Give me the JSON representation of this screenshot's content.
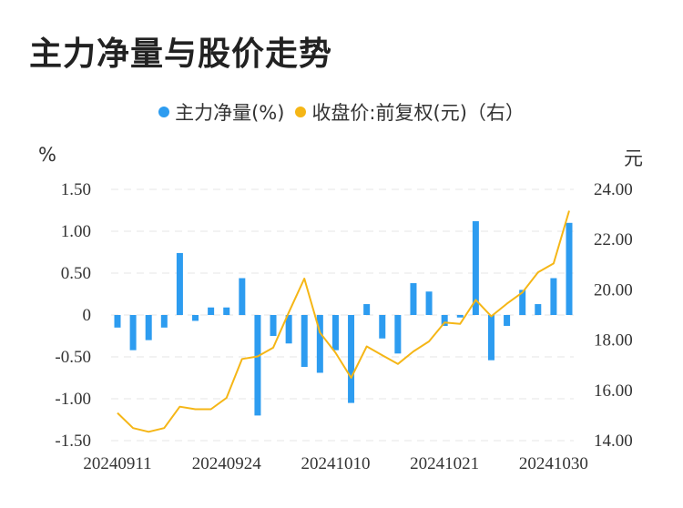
{
  "chart_data": {
    "type": "bar+line",
    "title": "主力净量与股价走势",
    "legend": [
      {
        "name": "主力净量(%)",
        "color": "#2d9cf0"
      },
      {
        "name": "收盘价:前复权(元)（右）",
        "color": "#f5b616"
      }
    ],
    "left_unit": "%",
    "right_unit": "元",
    "left_ylim": [
      -1.5,
      1.5
    ],
    "right_ylim": [
      14,
      24
    ],
    "left_ticks": [
      "1.50",
      "1.00",
      "0.50",
      "0",
      "-0.50",
      "-1.00",
      "-1.50"
    ],
    "left_tick_values": [
      1.5,
      1.0,
      0.5,
      0,
      -0.5,
      -1.0,
      -1.5
    ],
    "right_ticks": [
      "24.00",
      "22.00",
      "20.00",
      "18.00",
      "16.00",
      "14.00"
    ],
    "right_tick_values": [
      24,
      22,
      20,
      18,
      16,
      14
    ],
    "x_tick_labels": [
      {
        "index": 0,
        "label": "20240911"
      },
      {
        "index": 7,
        "label": "20240924"
      },
      {
        "index": 14,
        "label": "20241010"
      },
      {
        "index": 21,
        "label": "20241021"
      },
      {
        "index": 28,
        "label": "20241030"
      }
    ],
    "series": [
      {
        "name": "主力净量(%)",
        "type": "bar",
        "axis": "left",
        "values": [
          -0.15,
          -0.42,
          -0.3,
          -0.15,
          0.74,
          -0.07,
          0.09,
          0.09,
          0.44,
          -1.2,
          -0.25,
          -0.34,
          -0.62,
          -0.69,
          -0.42,
          -1.05,
          0.13,
          -0.28,
          -0.46,
          0.38,
          0.28,
          -0.13,
          -0.03,
          1.12,
          -0.54,
          -0.13,
          0.3,
          0.13,
          0.44,
          1.1
        ]
      },
      {
        "name": "收盘价:前复权(元)（右）",
        "type": "line",
        "axis": "right",
        "values": [
          15.1,
          14.5,
          14.35,
          14.5,
          15.35,
          15.25,
          15.25,
          15.7,
          17.25,
          17.35,
          17.7,
          19.1,
          20.45,
          18.3,
          17.5,
          16.5,
          17.75,
          17.4,
          17.05,
          17.55,
          17.95,
          18.7,
          18.65,
          19.6,
          18.95,
          19.45,
          19.9,
          20.7,
          21.05,
          23.15
        ]
      }
    ]
  }
}
